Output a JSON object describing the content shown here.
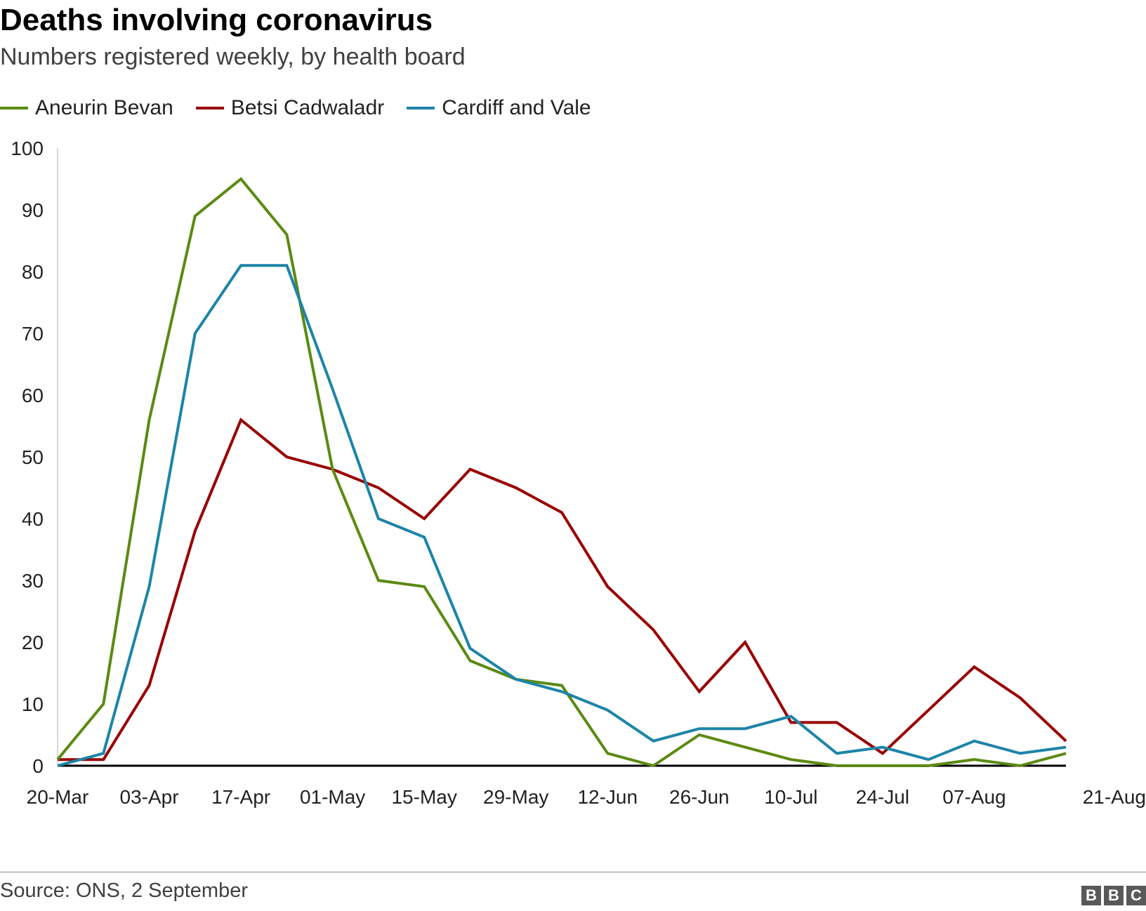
{
  "header": {
    "title": "Deaths involving coronavirus",
    "subtitle": "Numbers registered weekly, by health board"
  },
  "footer": {
    "source": "Source: ONS, 2 September",
    "logo_letters": [
      "B",
      "B",
      "C"
    ]
  },
  "colors": {
    "aneurin_bevan": "#5b8a12",
    "betsi_cadwaladr": "#990000",
    "cardiff_and_vale": "#1d84a8",
    "axis": "#000000",
    "tick_text": "#222222"
  },
  "chart_data": {
    "type": "line",
    "title": "Deaths involving coronavirus",
    "subtitle": "Numbers registered weekly, by health board",
    "xlabel": "",
    "ylabel": "",
    "ylim": [
      0,
      100
    ],
    "yticks": [
      0,
      10,
      20,
      30,
      40,
      50,
      60,
      70,
      80,
      90,
      100
    ],
    "grid": false,
    "legend_position": "top-left",
    "x": [
      "20-Mar",
      "27-Mar",
      "03-Apr",
      "10-Apr",
      "17-Apr",
      "24-Apr",
      "01-May",
      "08-May",
      "15-May",
      "22-May",
      "29-May",
      "05-Jun",
      "12-Jun",
      "19-Jun",
      "26-Jun",
      "03-Jul",
      "10-Jul",
      "17-Jul",
      "24-Jul",
      "31-Jul",
      "07-Aug",
      "14-Aug",
      "21-Aug"
    ],
    "x_tick_labels": [
      "20-Mar",
      "03-Apr",
      "17-Apr",
      "01-May",
      "15-May",
      "29-May",
      "12-Jun",
      "26-Jun",
      "10-Jul",
      "24-Jul",
      "07-Aug",
      "21-Aug"
    ],
    "series": [
      {
        "name": "Aneurin Bevan",
        "color_key": "aneurin_bevan",
        "values": [
          1,
          10,
          56,
          89,
          95,
          86,
          48,
          30,
          29,
          17,
          14,
          13,
          2,
          0,
          5,
          3,
          1,
          0,
          0,
          0,
          1,
          0,
          2
        ]
      },
      {
        "name": "Betsi Cadwaladr",
        "color_key": "betsi_cadwaladr",
        "values": [
          1,
          1,
          13,
          38,
          56,
          50,
          48,
          45,
          40,
          48,
          45,
          41,
          29,
          22,
          12,
          20,
          7,
          7,
          2,
          9,
          16,
          11,
          4
        ]
      },
      {
        "name": "Cardiff and Vale",
        "color_key": "cardiff_and_vale",
        "values": [
          0,
          2,
          29,
          70,
          81,
          81,
          61,
          40,
          37,
          19,
          14,
          12,
          9,
          4,
          6,
          6,
          8,
          2,
          3,
          1,
          4,
          2,
          3
        ]
      }
    ]
  }
}
